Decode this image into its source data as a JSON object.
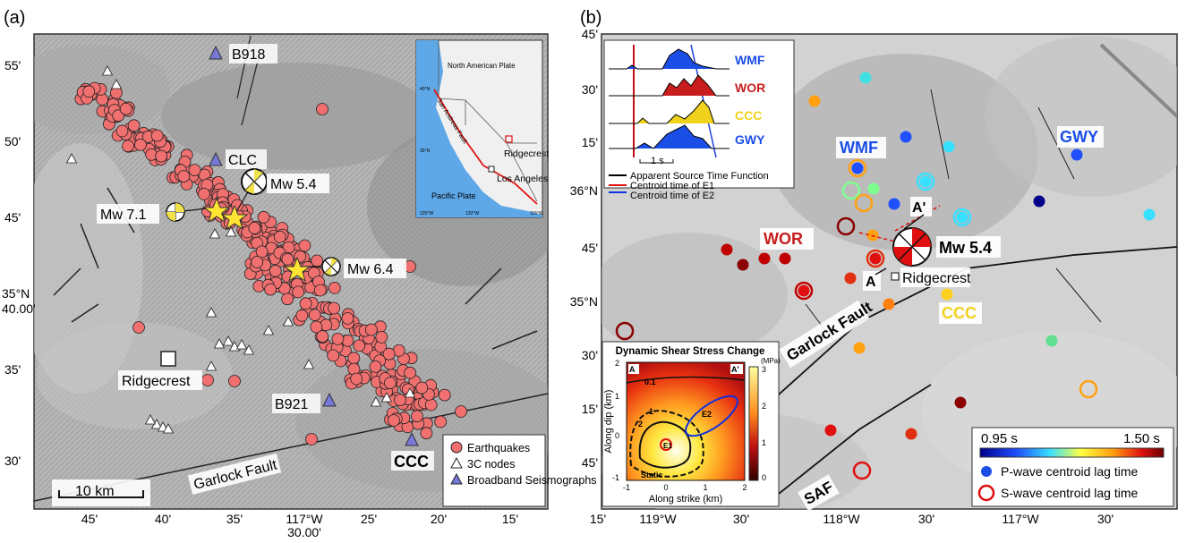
{
  "panel_a": {
    "label": "(a)",
    "lat_ticks": [
      "55'",
      "50'",
      "45'",
      "35°N",
      "40.00'",
      "35'",
      "30'"
    ],
    "lon_ticks": [
      "45'",
      "40'",
      "35'",
      "117°W",
      "30.00'",
      "25'",
      "20'",
      "15'"
    ],
    "stations": [
      {
        "name": "B918",
        "type": "broadband"
      },
      {
        "name": "CLC",
        "type": "broadband"
      },
      {
        "name": "B921",
        "type": "broadband"
      },
      {
        "name": "CCC",
        "type": "broadband"
      }
    ],
    "events": [
      {
        "label": "Mw 7.1"
      },
      {
        "label": "Mw 5.4"
      },
      {
        "label": "Mw 6.4"
      }
    ],
    "town": "Ridgecrest",
    "fault_label": "Garlock Fault",
    "scale_label": "10 km",
    "legend": [
      {
        "label": "Earthquakes",
        "symbol": "circle",
        "color": "#f07070"
      },
      {
        "label": "3C nodes",
        "symbol": "triangle",
        "color": "#ffffff"
      },
      {
        "label": "Broadband Seismographs",
        "symbol": "triangle",
        "color": "#7777d8"
      }
    ],
    "inset": {
      "labels": [
        "North American Plate",
        "San Andreas Fault",
        "Ridgecrest",
        "Los Angeles",
        "Pacific Plate"
      ],
      "lat_ticks": [
        "40°N",
        "35°N"
      ],
      "lon_ticks": [
        "125°W",
        "120°W",
        "115°W"
      ]
    }
  },
  "panel_b": {
    "label": "(b)",
    "lat_ticks": [
      "45'",
      "30'",
      "15'",
      "36°N",
      "45'",
      "35°N",
      "30'",
      "15'",
      "45'"
    ],
    "lon_ticks": [
      "15'",
      "119°W",
      "30'",
      "118°W",
      "30'",
      "117°W",
      "30'"
    ],
    "stations": [
      {
        "name": "WMF",
        "color": "#1a4ee6"
      },
      {
        "name": "WOR",
        "color": "#c81d1d"
      },
      {
        "name": "CCC",
        "color": "#f0d21c"
      },
      {
        "name": "GWY",
        "color": "#1a4ee6"
      }
    ],
    "event": "Mw 5.4",
    "profile_labels": [
      "A'",
      "A"
    ],
    "town": "Ridgecrest",
    "fault_labels": [
      "Garlock Fault",
      "SAF"
    ],
    "stf_inset": {
      "traces": [
        "WMF",
        "WOR",
        "CCC",
        "GWY"
      ],
      "scale": "1 s",
      "legend": [
        {
          "label": "Apparent Source Time Function",
          "color": "#000000"
        },
        {
          "label": "Centroid time of E1",
          "color": "#e01010"
        },
        {
          "label": "Centroid time of E2",
          "color": "#1030e0"
        }
      ]
    },
    "stress_inset": {
      "title": "Dynamic Shear Stress Change",
      "unit": "(MPa)",
      "xlabel": "Along strike (km)",
      "ylabel": "Along dip (km)",
      "xticks": [
        "-1",
        "0",
        "1",
        "2"
      ],
      "yticks": [
        "2",
        "1",
        "0",
        "-1"
      ],
      "colorbar_ticks": [
        "3",
        "2",
        "1",
        "0"
      ],
      "contour_labels": [
        "0.1",
        "1",
        "2"
      ],
      "markers": [
        "A",
        "A'",
        "E1",
        "E2",
        "Static"
      ]
    },
    "colorbar": {
      "min": "0.95 s",
      "max": "1.50 s"
    },
    "legend": [
      {
        "label": "P-wave centroid lag time",
        "symbol": "filled-circle",
        "color": "#1a4ee6"
      },
      {
        "label": "S-wave centroid lag time",
        "symbol": "ring",
        "color": "#e01010"
      }
    ]
  }
}
